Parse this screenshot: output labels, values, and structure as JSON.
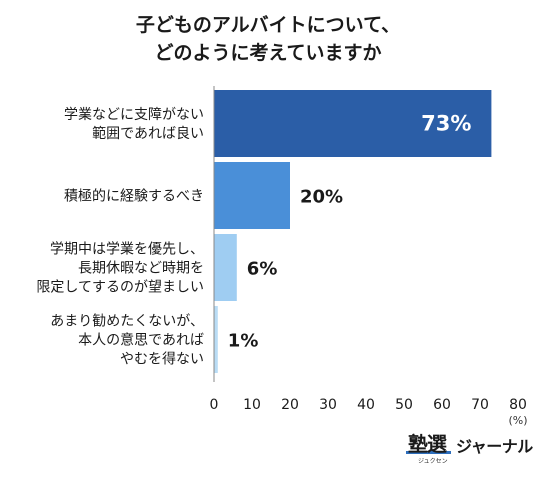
{
  "chart_data": {
    "type": "bar",
    "orientation": "horizontal",
    "title_lines": [
      "子どものアルバイトについて、",
      "どのように考えていますか"
    ],
    "categories": [
      [
        "学業などに支障がない",
        "範囲であれば良い"
      ],
      [
        "積極的に経験するべき"
      ],
      [
        "学期中は学業を優先し、",
        "長期休暇など時期を",
        "限定してするのが望ましい"
      ],
      [
        "あまり勧めたくないが、",
        "本人の意思であれば",
        "やむを得ない"
      ]
    ],
    "values": [
      73,
      20,
      6,
      1
    ],
    "value_labels": [
      "73%",
      "20%",
      "6%",
      "1%"
    ],
    "bar_colors": [
      "#2b5ea7",
      "#4a8fd8",
      "#9fcdf2",
      "#b9dcf5"
    ],
    "xlim": [
      0,
      80
    ],
    "xticks": [
      "0",
      "10",
      "20",
      "30",
      "40",
      "50",
      "60",
      "70",
      "80"
    ],
    "xunit": "(%)",
    "grid": false
  },
  "logo": {
    "main": "塾選",
    "sub": "ジャーナル",
    "ruby": "ジュクセン"
  }
}
